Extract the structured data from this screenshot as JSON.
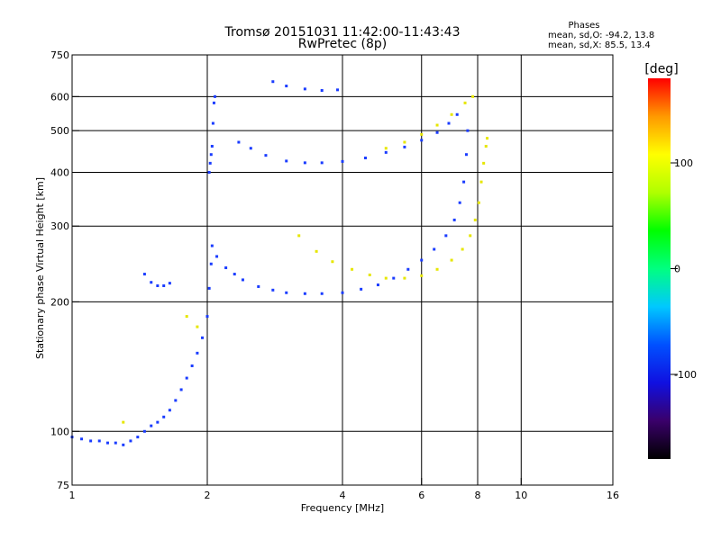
{
  "header": {
    "title": "Tromsø 20151031 11:42:00-11:43:43",
    "subtitle": "RwPretec (8p)",
    "stats_title": "Phases",
    "stats_line1": "mean, sd,O: -94.2, 13.8",
    "stats_line2": "mean, sd,X:  85.5, 13.4"
  },
  "colorbar": {
    "unit_label": "[deg]",
    "ticks": [
      {
        "value": 100,
        "label": "100"
      },
      {
        "value": 0,
        "label": "0"
      },
      {
        "value": -100,
        "label": "-100"
      }
    ],
    "range": [
      -180,
      180
    ],
    "colormap": [
      "#000000",
      "#3a006a",
      "#1010e0",
      "#0050ff",
      "#00c8ff",
      "#00ff80",
      "#00ff00",
      "#b0ff00",
      "#ffff00",
      "#ff9900",
      "#ff0000"
    ]
  },
  "chart_data": {
    "type": "scatter",
    "title": "Tromsø 20151031 11:42:00-11:43:43",
    "subtitle": "RwPretec (8p)",
    "xlabel": "Frequency [MHz]",
    "ylabel": "Stationary phase Virtual Height [km]",
    "x_scale": "log",
    "y_scale": "log",
    "xlim": [
      1,
      16
    ],
    "ylim": [
      75,
      750
    ],
    "x_ticks": [
      1,
      2,
      4,
      6,
      8,
      10,
      16
    ],
    "x_tick_labels": [
      "1",
      "2",
      "4",
      "6",
      "8",
      "10",
      "16"
    ],
    "y_ticks": [
      75,
      100,
      200,
      300,
      400,
      500,
      600,
      750
    ],
    "y_tick_labels": [
      "75",
      "100",
      "200",
      "300",
      "400",
      "500",
      "600",
      "750"
    ],
    "grid": true,
    "series": [
      {
        "name": "O",
        "color": "#1a3cff",
        "points": [
          [
            1.0,
            97
          ],
          [
            1.05,
            96
          ],
          [
            1.1,
            95
          ],
          [
            1.15,
            95
          ],
          [
            1.2,
            94
          ],
          [
            1.25,
            94
          ],
          [
            1.3,
            93
          ],
          [
            1.35,
            95
          ],
          [
            1.4,
            97
          ],
          [
            1.45,
            100
          ],
          [
            1.5,
            103
          ],
          [
            1.55,
            105
          ],
          [
            1.6,
            108
          ],
          [
            1.65,
            112
          ],
          [
            1.7,
            118
          ],
          [
            1.75,
            125
          ],
          [
            1.8,
            133
          ],
          [
            1.85,
            142
          ],
          [
            1.9,
            152
          ],
          [
            1.95,
            165
          ],
          [
            2.0,
            185
          ],
          [
            2.02,
            215
          ],
          [
            2.04,
            245
          ],
          [
            2.05,
            270
          ],
          [
            2.1,
            255
          ],
          [
            2.2,
            240
          ],
          [
            2.3,
            232
          ],
          [
            2.4,
            225
          ],
          [
            2.6,
            217
          ],
          [
            2.8,
            213
          ],
          [
            3.0,
            210
          ],
          [
            3.3,
            209
          ],
          [
            3.6,
            209
          ],
          [
            4.0,
            210
          ],
          [
            4.4,
            214
          ],
          [
            4.8,
            219
          ],
          [
            5.2,
            227
          ],
          [
            5.6,
            238
          ],
          [
            6.0,
            250
          ],
          [
            6.4,
            265
          ],
          [
            6.8,
            285
          ],
          [
            7.1,
            310
          ],
          [
            7.3,
            340
          ],
          [
            7.45,
            380
          ],
          [
            7.55,
            440
          ],
          [
            7.6,
            500
          ],
          [
            1.45,
            232
          ],
          [
            1.5,
            222
          ],
          [
            1.55,
            218
          ],
          [
            1.6,
            218
          ],
          [
            1.65,
            221
          ],
          [
            2.35,
            470
          ],
          [
            2.5,
            455
          ],
          [
            2.7,
            438
          ],
          [
            3.0,
            425
          ],
          [
            3.3,
            421
          ],
          [
            3.6,
            421
          ],
          [
            4.0,
            424
          ],
          [
            4.5,
            432
          ],
          [
            5.0,
            445
          ],
          [
            5.5,
            458
          ],
          [
            6.0,
            475
          ],
          [
            6.5,
            495
          ],
          [
            6.9,
            520
          ],
          [
            7.2,
            545
          ],
          [
            2.8,
            650
          ],
          [
            3.0,
            635
          ],
          [
            3.3,
            625
          ],
          [
            3.6,
            620
          ],
          [
            3.9,
            622
          ],
          [
            2.02,
            400
          ],
          [
            2.03,
            420
          ],
          [
            2.04,
            440
          ],
          [
            2.05,
            460
          ],
          [
            2.07,
            580
          ],
          [
            2.08,
            600
          ],
          [
            2.06,
            520
          ]
        ]
      },
      {
        "name": "X",
        "color": "#e6e600",
        "points": [
          [
            3.2,
            285
          ],
          [
            3.5,
            262
          ],
          [
            3.8,
            248
          ],
          [
            4.2,
            238
          ],
          [
            4.6,
            231
          ],
          [
            5.0,
            227
          ],
          [
            5.5,
            227
          ],
          [
            6.0,
            230
          ],
          [
            6.5,
            238
          ],
          [
            7.0,
            250
          ],
          [
            7.4,
            265
          ],
          [
            7.7,
            285
          ],
          [
            7.9,
            310
          ],
          [
            8.05,
            340
          ],
          [
            8.15,
            380
          ],
          [
            8.25,
            420
          ],
          [
            8.35,
            460
          ],
          [
            8.4,
            480
          ],
          [
            5.0,
            455
          ],
          [
            5.5,
            470
          ],
          [
            6.0,
            490
          ],
          [
            6.5,
            515
          ],
          [
            7.0,
            545
          ],
          [
            7.5,
            580
          ],
          [
            7.8,
            600
          ],
          [
            1.8,
            185
          ],
          [
            1.9,
            175
          ],
          [
            1.3,
            105
          ]
        ]
      }
    ]
  }
}
